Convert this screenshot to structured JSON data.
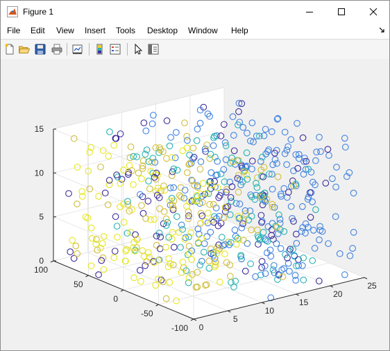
{
  "window": {
    "title": "Figure 1"
  },
  "menubar": {
    "items": [
      "File",
      "Edit",
      "View",
      "Insert",
      "Tools",
      "Desktop",
      "Window",
      "Help"
    ]
  },
  "toolbar": {
    "buttons": [
      "new-figure-icon",
      "open-file-icon",
      "save-icon",
      "print-icon",
      "link-plot-icon",
      "insert-colorbar-icon",
      "insert-legend-icon",
      "edit-plot-arrow-icon",
      "property-inspector-icon"
    ]
  },
  "colors": {
    "yellow": "#e6e61f",
    "gold": "#d0bd3a",
    "teal": "#24b3b0",
    "blue": "#3f82e0",
    "purple": "#3d2b9a",
    "axis": "#262626"
  },
  "chart_data": {
    "type": "scatter3",
    "title": "",
    "xlabel": "",
    "ylabel": "",
    "zlabel": "",
    "xlim": [
      0,
      25
    ],
    "ylim": [
      -100,
      100
    ],
    "zlim": [
      0,
      15
    ],
    "xticks": [
      "0",
      "5",
      "10",
      "15",
      "20",
      "25"
    ],
    "yticks": [
      "-100",
      "-50",
      "0",
      "50",
      "100"
    ],
    "zticks": [
      "0",
      "5",
      "10",
      "15"
    ],
    "grid": true,
    "marker": "open circle",
    "color_groups": [
      "yellow",
      "gold",
      "teal",
      "blue",
      "purple"
    ]
  }
}
